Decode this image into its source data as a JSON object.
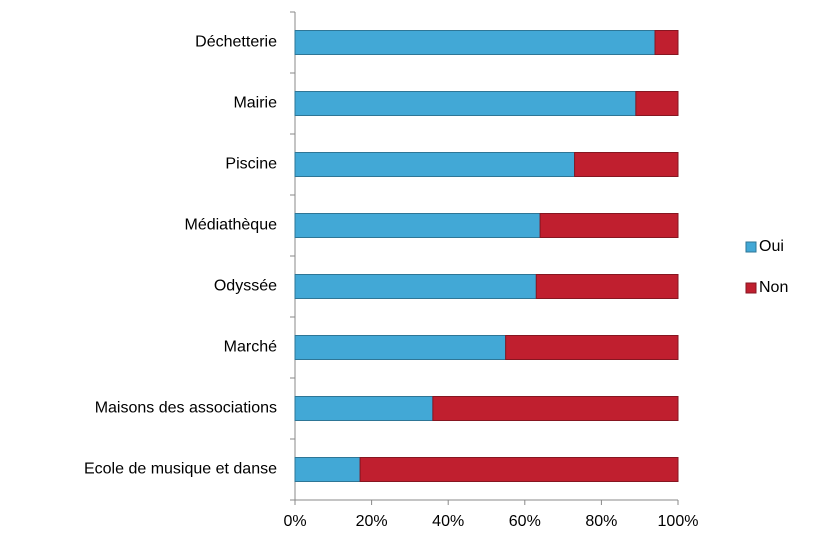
{
  "chart_data": {
    "type": "stacked_barh",
    "categories": [
      "Déchetterie",
      "Mairie",
      "Piscine",
      "Médiathèque",
      "Odyssée",
      "Marché",
      "Maisons des associations",
      "Ecole de musique et danse"
    ],
    "series": [
      {
        "name": "Oui",
        "color": "#42a8d6",
        "values": [
          94,
          89,
          73,
          64,
          63,
          55,
          36,
          17
        ]
      },
      {
        "name": "Non",
        "color": "#c01f2f",
        "values": [
          6,
          11,
          27,
          36,
          37,
          45,
          64,
          83
        ]
      }
    ],
    "xlim": [
      0,
      100
    ],
    "xticks": [
      {
        "value": 0,
        "label": "0%"
      },
      {
        "value": 20,
        "label": "20%"
      },
      {
        "value": 40,
        "label": "40%"
      },
      {
        "value": 60,
        "label": "60%"
      },
      {
        "value": 80,
        "label": "80%"
      },
      {
        "value": 100,
        "label": "100%"
      }
    ],
    "legend": "right"
  }
}
